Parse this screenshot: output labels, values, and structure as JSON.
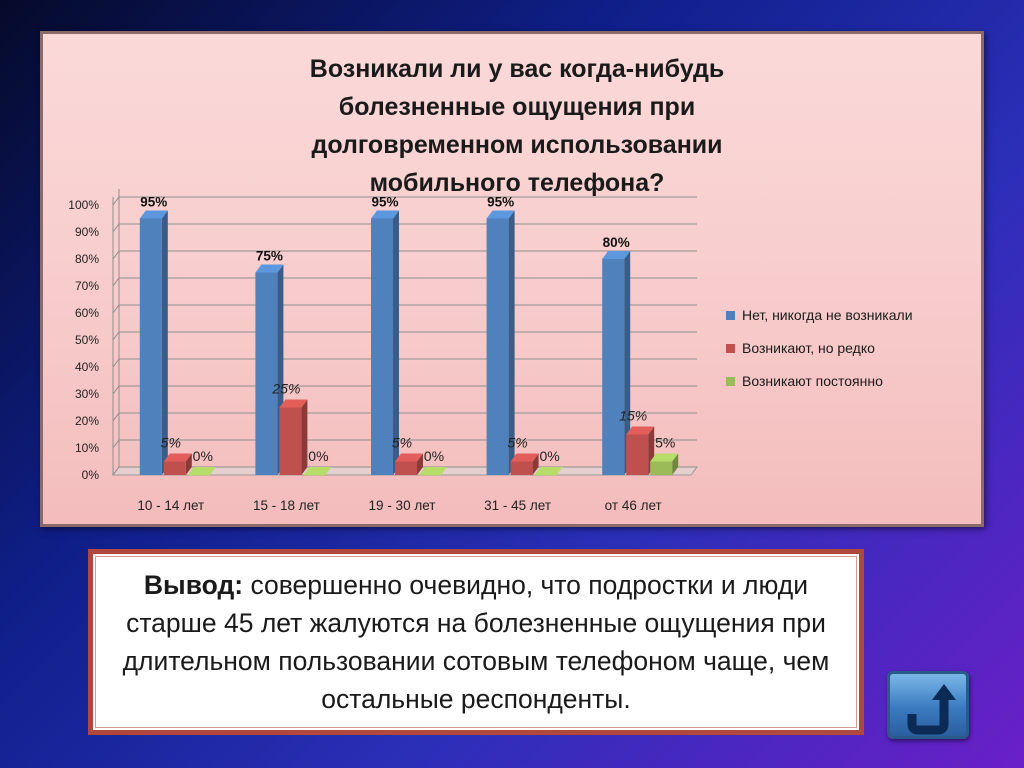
{
  "chart_data": {
    "type": "bar",
    "title": "Возникали ли у вас когда-нибудь болезненные ощущения при  долговременном использовании мобильного телефона?",
    "categories": [
      "10 - 14 лет",
      "15 - 18 лет",
      "19 - 30 лет",
      "31 - 45 лет",
      "от 46 лет"
    ],
    "series": [
      {
        "name": "Нет, никогда не возникали",
        "values": [
          95,
          75,
          95,
          95,
          80
        ],
        "labels": [
          "95%",
          "75%",
          "95%",
          "95%",
          "80%"
        ],
        "color": "#4f81bd"
      },
      {
        "name": "Возникают, но редко",
        "values": [
          5,
          25,
          5,
          5,
          15
        ],
        "labels": [
          "5%",
          "25%",
          "5%",
          "5%",
          "15%"
        ],
        "color": "#c0504d"
      },
      {
        "name": "Возникают постоянно",
        "values": [
          0,
          0,
          0,
          0,
          5
        ],
        "labels": [
          "0%",
          "0%",
          "0%",
          "0%",
          "5%"
        ],
        "color": "#9bbb59"
      }
    ],
    "yticks": [
      "0%",
      "10%",
      "20%",
      "30%",
      "40%",
      "50%",
      "60%",
      "70%",
      "80%",
      "90%",
      "100%"
    ],
    "ylim": [
      0,
      100
    ],
    "grid": true,
    "legend": "right"
  },
  "conclusion": {
    "lead": "Вывод:",
    "text": " совершенно очевидно, что подростки и люди старше 45 лет жалуются на болезненные ощущения при длительном пользовании сотовым телефоном чаще, чем остальные респонденты."
  },
  "nav": {
    "icon": "return-arrow-icon"
  }
}
